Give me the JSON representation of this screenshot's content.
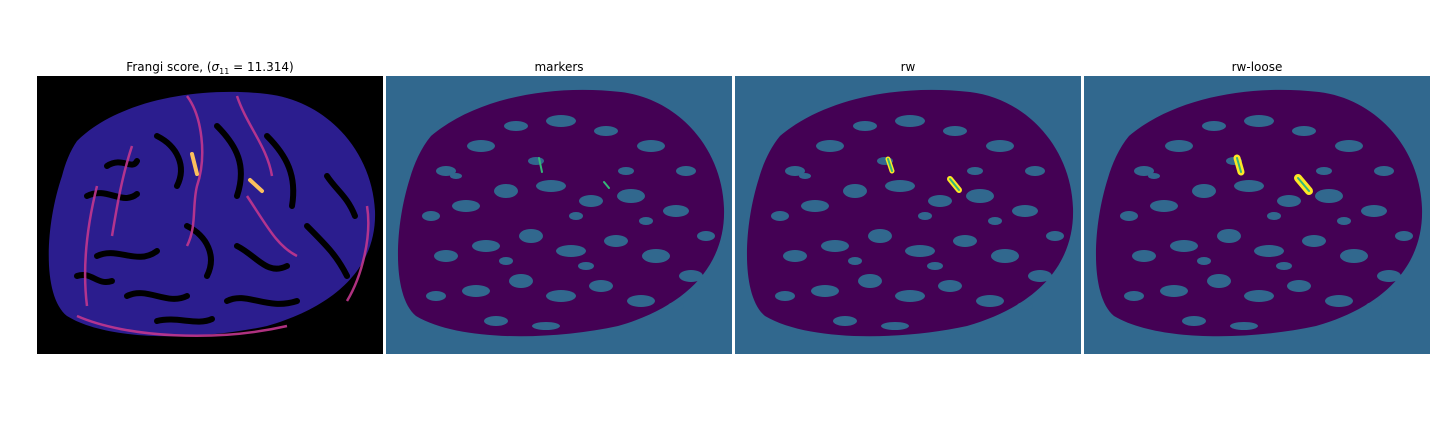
{
  "panels": [
    {
      "title_prefix": "Frangi score, (",
      "title_symbol": "σ",
      "title_sub": "11",
      "title_suffix": " = 11.314)",
      "colormap": "magma"
    },
    {
      "title": "markers",
      "colormap": "viridis"
    },
    {
      "title": "rw",
      "colormap": "viridis"
    },
    {
      "title": "rw-loose",
      "colormap": "viridis"
    }
  ],
  "colors": {
    "background_dark": "#000000",
    "label_bg": "#31688e",
    "label_region": "#440154",
    "label_vessel": "#fde725",
    "label_marker": "#35b779",
    "frangi_low": "#2c1a8a",
    "frangi_mid": "#b3379a",
    "frangi_high": "#fcbf5d"
  }
}
